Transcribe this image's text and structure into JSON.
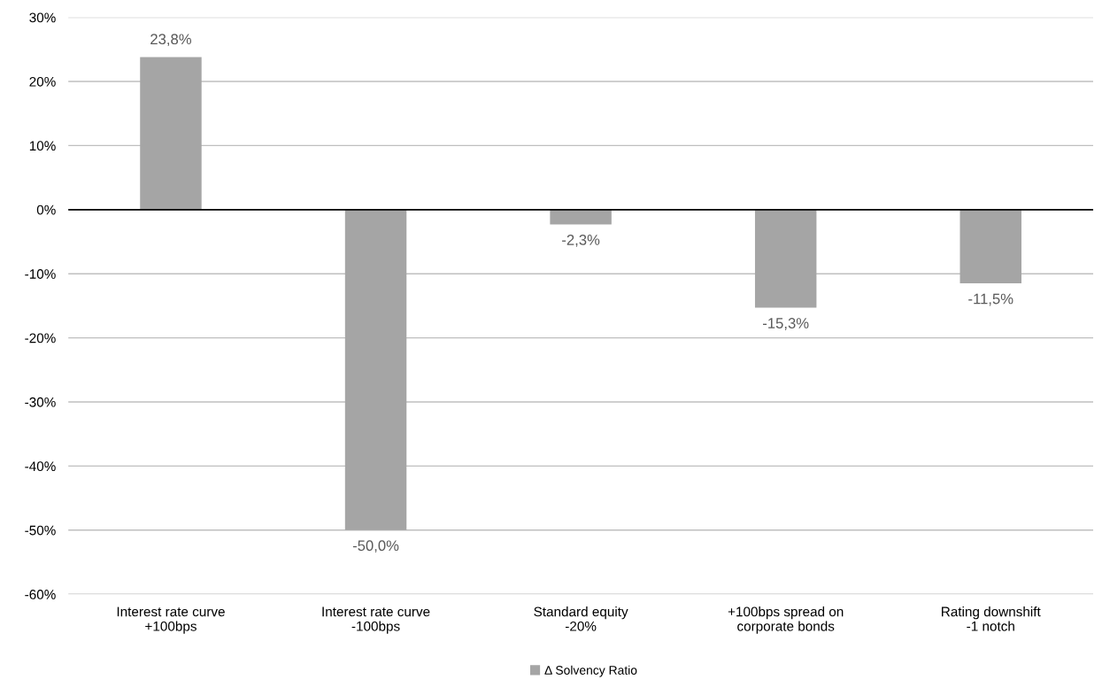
{
  "chart_data": {
    "type": "bar",
    "categories": [
      "Interest rate curve\n+100bps",
      "Interest rate curve\n-100bps",
      "Standard equity\n-20%",
      "+100bps spread on\ncorporate bonds",
      "Rating downshift\n-1 notch"
    ],
    "series": [
      {
        "name": "Δ Solvency Ratio",
        "color": "#a5a5a5",
        "values": [
          23.8,
          -50.0,
          -2.3,
          -15.3,
          -11.5
        ],
        "value_labels": [
          "23,8%",
          "-50,0%",
          "-2,3%",
          "-15,3%",
          "-11,5%"
        ]
      }
    ],
    "ylim": [
      -60,
      30
    ],
    "yticks": [
      {
        "value": -60,
        "label": "-60%"
      },
      {
        "value": -50,
        "label": "-50%"
      },
      {
        "value": -40,
        "label": "-40%"
      },
      {
        "value": -30,
        "label": "-30%"
      },
      {
        "value": -20,
        "label": "-20%"
      },
      {
        "value": -10,
        "label": "-10%"
      },
      {
        "value": 0,
        "label": "0%"
      },
      {
        "value": 10,
        "label": "10%"
      },
      {
        "value": 20,
        "label": "20%"
      },
      {
        "value": 30,
        "label": "30%"
      }
    ],
    "grid": "y",
    "legend": "bottom"
  }
}
